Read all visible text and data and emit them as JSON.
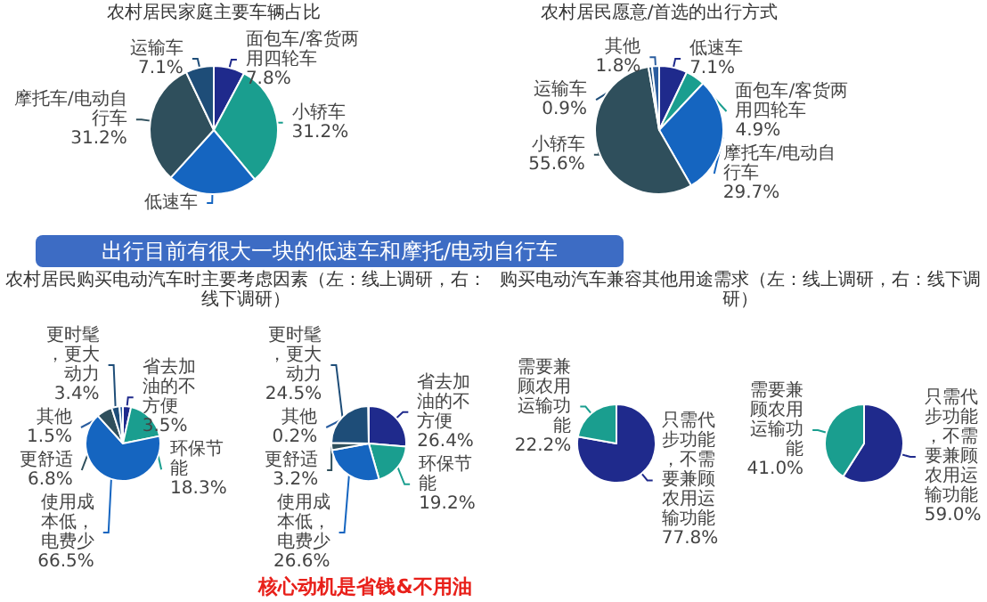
{
  "chart_data": [
    {
      "type": "pie",
      "title": "农村居民家庭主要车辆占比",
      "categories": [
        "面包车/客货两用四轮车",
        "小轿车",
        "低速车",
        "摩托车/电动自行车",
        "运输车"
      ],
      "values": [
        7.8,
        31.2,
        22.7,
        31.2,
        7.1
      ],
      "value_labels": [
        "7.8%",
        "31.2%",
        null,
        "31.2%",
        "7.1%"
      ],
      "colors": [
        "#1f2a8c",
        "#1a9e8f",
        "#1565c0",
        "#2f4f5c",
        "#1e4d78"
      ],
      "annotations": [
        "出行目前有很大一块的低速车和摩托/电动自行车"
      ]
    },
    {
      "type": "pie",
      "title": "农村居民愿意/首选的出行方式",
      "categories": [
        "低速车",
        "面包车/客货两用四轮车",
        "摩托车/电动自行车",
        "小轿车",
        "运输车",
        "其他"
      ],
      "values": [
        7.1,
        4.9,
        29.7,
        55.6,
        0.9,
        1.8
      ],
      "value_labels": [
        "7.1%",
        "4.9%",
        "29.7%",
        "55.6%",
        "0.9%",
        "1.8%"
      ],
      "colors": [
        "#1f2a8c",
        "#1a9e8f",
        "#1565c0",
        "#2f4f5c",
        "#1e4d78",
        "#2a5d9f"
      ]
    },
    {
      "type": "pie",
      "title": "农村居民购买电动汽车时主要考虑因素（左：线上调研，右：线下调研）",
      "categories": [
        "省去加油的不方便",
        "环保节能",
        "使用成本低，电费少",
        "更舒适",
        "更时髦，更大动力",
        "其他"
      ],
      "values": [
        3.5,
        18.3,
        66.5,
        6.8,
        3.4,
        1.5
      ],
      "value_labels": [
        "3.5%",
        "18.3%",
        "66.5%",
        "6.8%",
        "3.4%",
        "1.5%"
      ],
      "colors": [
        "#1f2a8c",
        "#1a9e8f",
        "#1565c0",
        "#2f4f5c",
        "#1e4d78",
        "#2a5d9f"
      ],
      "annotations": [
        "核心动机是省钱&不用油"
      ]
    },
    {
      "type": "pie",
      "categories": [
        "省去加油的不方便",
        "环保节能",
        "使用成本低，电费少",
        "更舒适",
        "更时髦，更大动力",
        "其他"
      ],
      "values": [
        26.4,
        19.2,
        26.6,
        3.2,
        24.5,
        0.2
      ],
      "value_labels": [
        "26.4%",
        "19.2%",
        "26.6%",
        "3.2%",
        "24.5%",
        "0.2%"
      ],
      "colors": [
        "#1f2a8c",
        "#1a9e8f",
        "#1565c0",
        "#2f4f5c",
        "#1e4d78",
        "#2a5d9f"
      ]
    },
    {
      "type": "pie",
      "title": "购买电动汽车兼容其他用途需求（左：线上调研，右：线下调研）",
      "categories": [
        "只需代步功能，不需要兼顾农用运输功能",
        "需要兼顾农用运输功能"
      ],
      "values": [
        77.8,
        22.2
      ],
      "value_labels": [
        "77.8%",
        "22.2%"
      ],
      "colors": [
        "#1f2a8c",
        "#1a9e8f"
      ]
    },
    {
      "type": "pie",
      "categories": [
        "只需代步功能，不需要兼顾农用运输功能",
        "需要兼顾农用运输功能"
      ],
      "values": [
        59.0,
        41.0
      ],
      "value_labels": [
        "59.0%",
        "41.0%"
      ],
      "colors": [
        "#1f2a8c",
        "#1a9e8f"
      ]
    }
  ]
}
